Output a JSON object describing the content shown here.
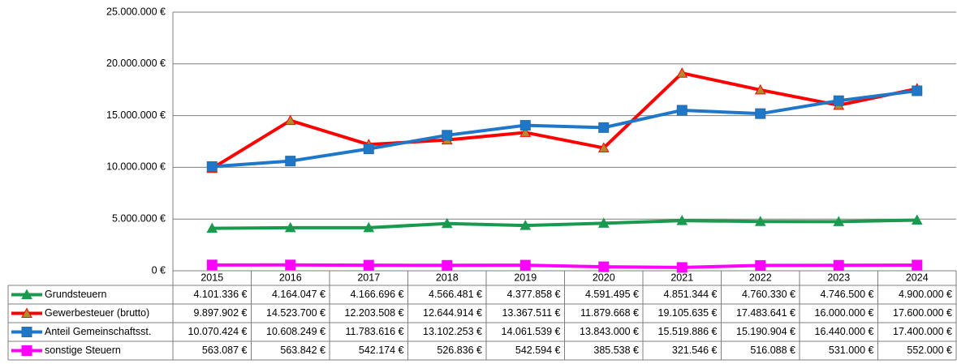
{
  "chart_data": {
    "type": "line",
    "categories": [
      "2015",
      "2016",
      "2017",
      "2018",
      "2019",
      "2020",
      "2021",
      "2022",
      "2023",
      "2024"
    ],
    "ylim": [
      0,
      25000000
    ],
    "yticks": [
      {
        "value": 0,
        "label": "0 €"
      },
      {
        "value": 5000000,
        "label": "5.000.000 €"
      },
      {
        "value": 10000000,
        "label": "10.000.000 €"
      },
      {
        "value": 15000000,
        "label": "15.000.000 €"
      },
      {
        "value": 20000000,
        "label": "20.000.000 €"
      },
      {
        "value": 25000000,
        "label": "25.000.000 €"
      }
    ],
    "grid": true,
    "series": [
      {
        "name": "Grundsteuern",
        "color": "#1a9a4f",
        "marker": "triangle",
        "values": [
          4101336,
          4164047,
          4166696,
          4566481,
          4377858,
          4591495,
          4851344,
          4760330,
          4746500,
          4900000
        ],
        "value_labels": [
          "4.101.336 €",
          "4.164.047 €",
          "4.166.696 €",
          "4.566.481 €",
          "4.377.858 €",
          "4.591.495 €",
          "4.851.344 €",
          "4.760.330 €",
          "4.746.500 €",
          "4.900.000 €"
        ]
      },
      {
        "name": "Gewerbesteuer (brutto)",
        "color": "#ff0000",
        "marker": "triangle",
        "values": [
          9897902,
          14523700,
          12203508,
          12644914,
          13367511,
          11879668,
          19105635,
          17483641,
          16000000,
          17600000
        ],
        "value_labels": [
          "9.897.902 €",
          "14.523.700 €",
          "12.203.508 €",
          "12.644.914 €",
          "13.367.511 €",
          "11.879.668 €",
          "19.105.635 €",
          "17.483.641 €",
          "16.000.000 €",
          "17.600.000 €"
        ]
      },
      {
        "name": "Anteil Gemeinschaftsst.",
        "color": "#1f77c9",
        "marker": "square",
        "values": [
          10070424,
          10608249,
          11783616,
          13102253,
          14061539,
          13843000,
          15519886,
          15190904,
          16440000,
          17400000
        ],
        "value_labels": [
          "10.070.424 €",
          "10.608.249 €",
          "11.783.616 €",
          "13.102.253 €",
          "14.061.539 €",
          "13.843.000 €",
          "15.519.886 €",
          "15.190.904 €",
          "16.440.000 €",
          "17.400.000 €"
        ]
      },
      {
        "name": "sonstige Steuern",
        "color": "#ff00ff",
        "marker": "square",
        "values": [
          563087,
          563842,
          542174,
          526836,
          542594,
          385538,
          321546,
          516088,
          531000,
          552000
        ],
        "value_labels": [
          "563.087 €",
          "563.842 €",
          "542.174 €",
          "526.836 €",
          "542.594 €",
          "385.538 €",
          "321.546 €",
          "516.088 €",
          "531.000 €",
          "552.000 €"
        ]
      }
    ]
  }
}
